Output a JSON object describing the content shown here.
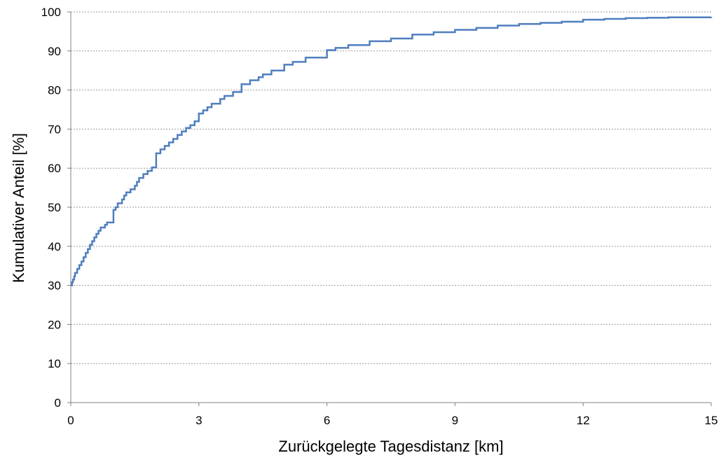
{
  "chart_data": {
    "type": "line",
    "title": "",
    "xlabel": "Zurückgelegte Tagesdistanz [km]",
    "ylabel": "Kumulativer Anteil [%]",
    "xlim": [
      0,
      15
    ],
    "ylim": [
      0,
      100
    ],
    "xticks": [
      0,
      3,
      6,
      9,
      12,
      15
    ],
    "yticks": [
      0,
      10,
      20,
      30,
      40,
      50,
      60,
      70,
      80,
      90,
      100
    ],
    "grid": {
      "horizontal": true,
      "vertical": false,
      "style": "dotted"
    },
    "legend": "none",
    "colors": {
      "line": "#4F7EBF",
      "grid": "#9a9a9a",
      "axis": "#808080"
    },
    "series": [
      {
        "step": true,
        "x": [
          0,
          0.03,
          0.05,
          0.08,
          0.1,
          0.15,
          0.2,
          0.25,
          0.3,
          0.35,
          0.4,
          0.45,
          0.5,
          0.55,
          0.6,
          0.65,
          0.7,
          0.8,
          0.85,
          0.9,
          1.0,
          1.05,
          1.1,
          1.2,
          1.25,
          1.3,
          1.4,
          1.5,
          1.55,
          1.6,
          1.7,
          1.8,
          1.9,
          2.0,
          2.1,
          2.2,
          2.3,
          2.4,
          2.5,
          2.6,
          2.7,
          2.8,
          2.9,
          3.0,
          3.1,
          3.2,
          3.3,
          3.5,
          3.6,
          3.8,
          4.0,
          4.2,
          4.4,
          4.5,
          4.7,
          5.0,
          5.2,
          5.5,
          6.0,
          6.2,
          6.5,
          7.0,
          7.5,
          8.0,
          8.5,
          9.0,
          9.5,
          10.0,
          10.5,
          11.0,
          11.5,
          12.0,
          12.5,
          13.0,
          13.5,
          14.0,
          15.0
        ],
        "y": [
          30,
          30.8,
          31.5,
          32.3,
          33.2,
          34.2,
          35.2,
          36.1,
          37.2,
          38.3,
          39.3,
          40.4,
          41.3,
          42.3,
          43.2,
          44.0,
          44.8,
          45.5,
          46.1,
          46.1,
          49.3,
          50.0,
          51.0,
          52.0,
          53.0,
          53.8,
          54.6,
          55.5,
          56.5,
          57.5,
          58.5,
          59.3,
          60.2,
          63.8,
          64.8,
          65.7,
          66.6,
          67.5,
          68.5,
          69.4,
          70.3,
          71.0,
          72.0,
          74.0,
          74.8,
          75.6,
          76.5,
          77.7,
          78.5,
          79.5,
          81.5,
          82.5,
          83.3,
          84.0,
          85.0,
          86.5,
          87.2,
          88.3,
          90.2,
          90.8,
          91.5,
          92.5,
          93.2,
          94.2,
          94.8,
          95.4,
          95.9,
          96.5,
          96.9,
          97.2,
          97.5,
          98.0,
          98.2,
          98.4,
          98.5,
          98.6,
          98.7
        ]
      }
    ]
  }
}
